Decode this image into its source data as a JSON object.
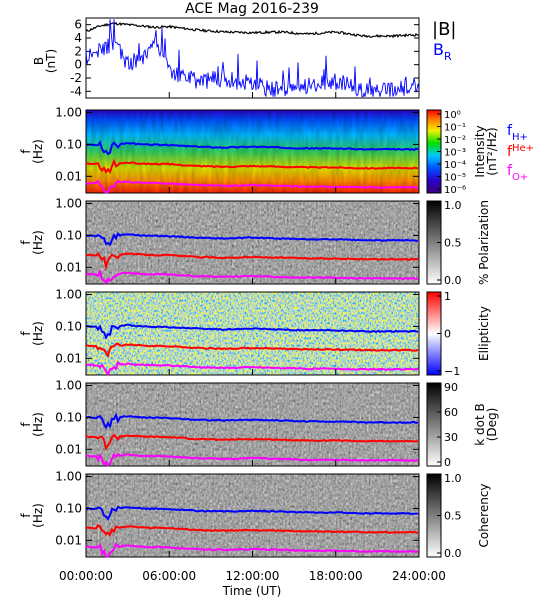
{
  "title": "ACE Mag 2016-239",
  "x_axis": {
    "ticks": [
      "00:00:00",
      "06:00:00",
      "12:00:00",
      "18:00:00",
      "24:00:00"
    ],
    "label": "Time (UT)"
  },
  "legend": {
    "magnitude": "|B|",
    "radial_main": "B",
    "radial_sub": "R",
    "h_main": "f",
    "h_sub": "H+",
    "he_main": "f",
    "he_sub": "He+",
    "o_main": "f",
    "o_sub": "O+"
  },
  "colors": {
    "magnitude": "#000000",
    "radial": "#0000ff",
    "f_H": "#0000ff",
    "f_He": "#ff0000",
    "f_O": "#ff00ff"
  },
  "panels": {
    "b": {
      "ylabel": "B",
      "yunit": "(nT)",
      "ticks": [
        "6",
        "4",
        "2",
        "0",
        "-2",
        "-4"
      ]
    },
    "spectra": [
      {
        "id": "intensity",
        "ylabel": "f",
        "yunit": "(Hz)",
        "yticks": [
          "1.00",
          "0.10",
          "0.01"
        ],
        "colorbar_title": "Intensity",
        "colorbar_unit": "(nT²/Hz)",
        "colorbar_ticks": [
          "10⁰",
          "10⁻¹",
          "10⁻²",
          "10⁻³",
          "10⁻⁴",
          "10⁻⁵",
          "10⁻⁶"
        ],
        "colormap": "rainbow"
      },
      {
        "id": "polarization",
        "ylabel": "f",
        "yunit": "(Hz)",
        "yticks": [
          "1.00",
          "0.10",
          "0.01"
        ],
        "colorbar_title": "% Polarization",
        "colorbar_unit": "",
        "colorbar_ticks": [
          "1.0",
          "0.5",
          "0.0"
        ],
        "colormap": "gray"
      },
      {
        "id": "ellipticity",
        "ylabel": "f",
        "yunit": "(Hz)",
        "yticks": [
          "1.00",
          "0.10",
          "0.01"
        ],
        "colorbar_title": "Ellipticity",
        "colorbar_unit": "",
        "colorbar_ticks": [
          "1",
          "0",
          "−1"
        ],
        "colormap": "bwr"
      },
      {
        "id": "kdotb",
        "ylabel": "f",
        "yunit": "(Hz)",
        "yticks": [
          "1.00",
          "0.10",
          "0.01"
        ],
        "colorbar_title": "k dot B",
        "colorbar_unit": "(Deg)",
        "colorbar_ticks": [
          "90",
          "60",
          "30",
          "0"
        ],
        "colormap": "gray"
      },
      {
        "id": "coherency",
        "ylabel": "f",
        "yunit": "(Hz)",
        "yticks": [
          "1.00",
          "0.10",
          "0.01"
        ],
        "colorbar_title": "Coherency",
        "colorbar_unit": "",
        "colorbar_ticks": [
          "1.0",
          "0.5",
          "0.0"
        ],
        "colormap": "gray"
      }
    ]
  },
  "chart_data": [
    {
      "type": "line",
      "ylabel": "B (nT)",
      "xlabel": "Time (UT)",
      "xlim": [
        0,
        24
      ],
      "ylim": [
        -5,
        7
      ],
      "x": [
        0,
        1,
        2,
        3,
        4,
        5,
        6,
        8,
        10,
        12,
        14,
        16,
        18,
        20,
        22,
        24
      ],
      "series": [
        {
          "name": "|B|",
          "values": [
            5.0,
            5.8,
            6.2,
            6.0,
            5.8,
            5.6,
            5.7,
            5.2,
            4.9,
            4.8,
            4.9,
            4.6,
            4.9,
            4.3,
            4.3,
            4.5
          ]
        },
        {
          "name": "BR",
          "values": [
            1.0,
            2.0,
            3.5,
            0.0,
            1.0,
            4.0,
            -1.0,
            -2.5,
            -2.0,
            -3.0,
            -4.0,
            -3.0,
            -2.5,
            -4.0,
            -4.0,
            -3.0
          ]
        }
      ]
    },
    {
      "type": "heatmap",
      "ylabel": "f (Hz)",
      "xlim": [
        0,
        24
      ],
      "ylim": [
        0.003,
        1.2
      ],
      "yscale": "log",
      "x": [
        0,
        1,
        1.5,
        2,
        3,
        4,
        6,
        8,
        10,
        12,
        14,
        16,
        18,
        20,
        22,
        24
      ],
      "series": [
        {
          "name": "H+",
          "values": [
            0.1,
            0.095,
            0.045,
            0.095,
            0.11,
            0.1,
            0.095,
            0.085,
            0.08,
            0.085,
            0.08,
            0.075,
            0.075,
            0.07,
            0.07,
            0.07
          ]
        },
        {
          "name": "He+",
          "values": [
            0.025,
            0.024,
            0.012,
            0.024,
            0.027,
            0.025,
            0.024,
            0.021,
            0.02,
            0.021,
            0.02,
            0.019,
            0.019,
            0.018,
            0.018,
            0.018
          ]
        },
        {
          "name": "O+",
          "values": [
            0.0062,
            0.006,
            0.003,
            0.006,
            0.0068,
            0.0062,
            0.006,
            0.0053,
            0.005,
            0.0053,
            0.005,
            0.0047,
            0.0047,
            0.0045,
            0.0045,
            0.0045
          ]
        }
      ]
    }
  ]
}
